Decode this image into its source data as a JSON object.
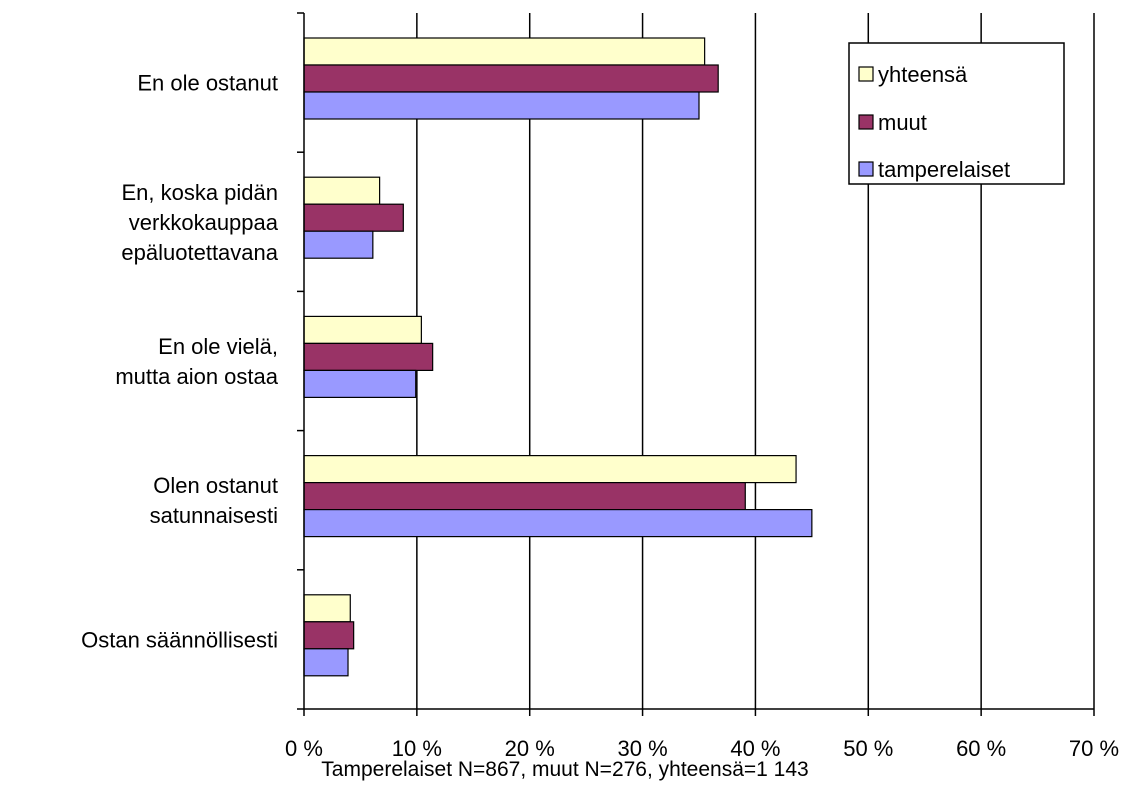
{
  "chart_data": {
    "type": "bar",
    "orientation": "horizontal",
    "categories": [
      "En ole ostanut",
      "En, koska pidän verkkokauppaa epäluotettavana",
      "En ole vielä, mutta aion ostaa",
      "Olen ostanut satunnaisesti",
      "Ostan säännöllisesti"
    ],
    "category_lines": [
      [
        "En ole ostanut"
      ],
      [
        "En, koska pidän",
        "verkkokauppaa",
        "epäluotettavana"
      ],
      [
        "En ole vielä,",
        "mutta aion ostaa"
      ],
      [
        "Olen ostanut",
        "satunnaisesti"
      ],
      [
        "Ostan säännöllisesti"
      ]
    ],
    "series": [
      {
        "name": "yhteensä",
        "color": "#ffffcc",
        "values": [
          35.5,
          6.7,
          10.4,
          43.6,
          4.1
        ]
      },
      {
        "name": "muut",
        "color": "#993366",
        "values": [
          36.7,
          8.8,
          11.4,
          39.1,
          4.4
        ]
      },
      {
        "name": "tamperelaiset",
        "color": "#9999ff",
        "values": [
          35.0,
          6.1,
          9.9,
          45.0,
          3.9
        ]
      }
    ],
    "xlim": [
      0,
      70
    ],
    "x_ticks": [
      0,
      10,
      20,
      30,
      40,
      50,
      60,
      70
    ],
    "x_tick_labels": [
      "0 %",
      "10 %",
      "20 %",
      "30 %",
      "40 %",
      "50 %",
      "60 %",
      "70 %"
    ],
    "grid": true,
    "legend_position": "top-right",
    "title": "",
    "xlabel": "",
    "ylabel": ""
  },
  "footnote": "Tamperelaiset N=867, muut N=276, yhteensä=1 143"
}
